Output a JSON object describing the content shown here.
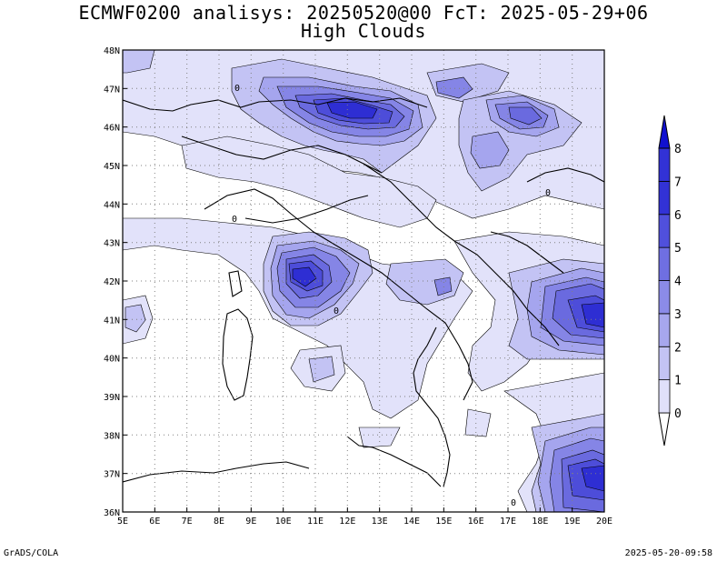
{
  "title": {
    "line1": "ECMWF0200 analisys: 20250520@00 FcT: 2025-05-29+06",
    "line2": "High Clouds"
  },
  "map": {
    "lon_range": [
      5,
      20
    ],
    "lat_range": [
      36,
      48
    ],
    "lon_labels": [
      "5E",
      "6E",
      "7E",
      "8E",
      "9E",
      "10E",
      "11E",
      "12E",
      "13E",
      "14E",
      "15E",
      "16E",
      "17E",
      "18E",
      "19E",
      "20E"
    ],
    "lat_labels": [
      "36N",
      "37N",
      "38N",
      "39N",
      "40N",
      "41N",
      "42N",
      "43N",
      "44N",
      "45N",
      "46N",
      "47N",
      "48N"
    ],
    "gridlines": "dotted",
    "contour_label": "0"
  },
  "colorbar": {
    "levels": [
      "0",
      "1",
      "2",
      "3",
      "4",
      "5",
      "6",
      "7",
      "8"
    ],
    "colors": [
      "#ffffff",
      "#e0e0fa",
      "#c3c3f4",
      "#a7a7ee",
      "#8b8be8",
      "#6f6fe2",
      "#5050dc",
      "#3232d6",
      "#1010d0"
    ]
  },
  "footer": {
    "left": "GrADS/COLA",
    "right": "2025-05-20-09:58"
  }
}
